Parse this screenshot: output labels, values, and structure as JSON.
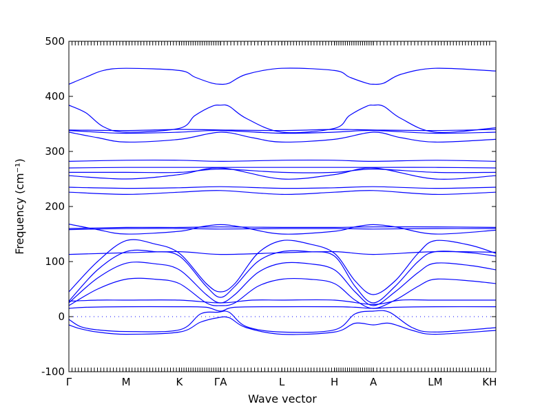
{
  "chart_data": {
    "type": "line",
    "xlabel": "Wave vector",
    "ylabel": "Frequency (cm⁻¹)",
    "ylim": [
      -100,
      500
    ],
    "yticks": [
      -100,
      0,
      100,
      200,
      300,
      400,
      500
    ],
    "xlim": [
      0,
      7.46
    ],
    "high_symmetry_points": [
      {
        "label": "Γ",
        "x": 0.0
      },
      {
        "label": "M",
        "x": 1.0
      },
      {
        "label": "K",
        "x": 1.93
      },
      {
        "label": "ΓA",
        "x": 2.65
      },
      {
        "label": "L",
        "x": 3.72
      },
      {
        "label": "H",
        "x": 4.64
      },
      {
        "label": "A",
        "x": 5.32
      },
      {
        "label": "LM",
        "x": 6.4
      },
      {
        "label": "KH",
        "x": 7.35
      }
    ],
    "zero_line": 0,
    "band_color": "#0000ff",
    "bands": [
      {
        "x": [
          0,
          0.2,
          0.5,
          1.0,
          1.93,
          2.3,
          2.6,
          2.8,
          3.1,
          3.72,
          4.64,
          5.0,
          5.32,
          5.6,
          6.0,
          6.4,
          7.46
        ],
        "y": [
          -15,
          -22,
          -28,
          -32,
          -28,
          -10,
          -2,
          -2,
          -20,
          -32,
          -28,
          -12,
          -15,
          -12,
          -25,
          -32,
          -25
        ]
      },
      {
        "x": [
          0,
          0.2,
          0.5,
          1.0,
          1.93,
          2.3,
          2.6,
          2.8,
          3.1,
          3.72,
          4.64,
          5.0,
          5.32,
          5.6,
          6.0,
          6.4,
          7.46
        ],
        "y": [
          -5,
          -18,
          -24,
          -27,
          -24,
          5,
          8,
          8,
          -18,
          -28,
          -24,
          5,
          10,
          8,
          -20,
          -28,
          -20
        ]
      },
      {
        "x": [
          0,
          0.3,
          1.0,
          1.93,
          2.4,
          2.65,
          2.9,
          3.72,
          4.64,
          5.0,
          5.32,
          5.7,
          6.4,
          7.46
        ],
        "y": [
          15,
          17,
          18,
          18,
          17,
          10,
          17,
          18,
          18,
          17,
          15,
          17,
          18,
          18
        ]
      },
      {
        "x": [
          0,
          0.5,
          1.0,
          1.93,
          2.65,
          3.2,
          3.72,
          4.64,
          5.32,
          5.8,
          6.4,
          7.46
        ],
        "y": [
          28,
          30,
          30,
          30,
          25,
          30,
          30,
          30,
          22,
          30,
          30,
          30
        ]
      },
      {
        "x": [
          0,
          0.5,
          1.0,
          1.5,
          1.93,
          2.4,
          2.65,
          2.9,
          3.3,
          3.72,
          4.2,
          4.64,
          5.0,
          5.32,
          5.7,
          6.1,
          6.4,
          7.0,
          7.46
        ],
        "y": [
          20,
          50,
          68,
          68,
          60,
          25,
          20,
          25,
          55,
          68,
          68,
          60,
          30,
          15,
          30,
          55,
          68,
          65,
          60
        ]
      },
      {
        "x": [
          0,
          0.5,
          1.0,
          1.5,
          1.93,
          2.4,
          2.65,
          2.9,
          3.3,
          3.72,
          4.2,
          4.64,
          5.0,
          5.32,
          5.7,
          6.1,
          6.4,
          7.0,
          7.46
        ],
        "y": [
          25,
          70,
          97,
          96,
          85,
          40,
          25,
          40,
          80,
          97,
          96,
          85,
          45,
          20,
          45,
          80,
          97,
          93,
          85
        ]
      },
      {
        "x": [
          0,
          0.5,
          1.0,
          1.5,
          1.93,
          2.4,
          2.65,
          2.9,
          3.3,
          3.72,
          4.2,
          4.64,
          5.0,
          5.32,
          5.7,
          6.1,
          6.4,
          7.0,
          7.46
        ],
        "y": [
          28,
          85,
          118,
          118,
          110,
          55,
          35,
          55,
          100,
          118,
          118,
          110,
          55,
          25,
          55,
          100,
          118,
          116,
          110
        ]
      },
      {
        "x": [
          0,
          0.5,
          1.0,
          1.5,
          1.93,
          2.4,
          2.65,
          2.9,
          3.3,
          3.72,
          4.2,
          4.64,
          5.0,
          5.32,
          5.7,
          6.1,
          6.4,
          7.0,
          7.46
        ],
        "y": [
          45,
          100,
          138,
          132,
          115,
          60,
          45,
          60,
          115,
          138,
          132,
          115,
          65,
          40,
          65,
          115,
          138,
          130,
          115
        ]
      },
      {
        "x": [
          0,
          1.0,
          1.93,
          2.65,
          3.72,
          4.64,
          5.32,
          6.4,
          7.46
        ],
        "y": [
          113,
          116,
          118,
          113,
          116,
          118,
          113,
          118,
          117
        ]
      },
      {
        "x": [
          0,
          1.0,
          1.93,
          2.65,
          3.72,
          4.64,
          5.32,
          6.4,
          7.46
        ],
        "y": [
          158,
          160,
          160,
          159,
          160,
          160,
          159,
          160,
          160
        ]
      },
      {
        "x": [
          0,
          1.0,
          1.93,
          2.65,
          3.72,
          4.64,
          5.32,
          6.4,
          7.46
        ],
        "y": [
          160,
          162,
          162,
          163,
          162,
          162,
          163,
          163,
          162
        ]
      },
      {
        "x": [
          0,
          0.5,
          1.0,
          1.93,
          2.3,
          2.65,
          3.0,
          3.72,
          4.64,
          5.0,
          5.32,
          5.7,
          6.4,
          7.46
        ],
        "y": [
          168,
          158,
          150,
          155,
          163,
          167,
          163,
          150,
          155,
          163,
          167,
          163,
          150,
          157
        ]
      },
      {
        "x": [
          0,
          1.0,
          1.93,
          2.65,
          3.72,
          4.64,
          5.32,
          6.4,
          7.46
        ],
        "y": [
          226,
          222,
          226,
          229,
          222,
          226,
          229,
          222,
          226
        ]
      },
      {
        "x": [
          0,
          1.0,
          1.93,
          2.65,
          3.72,
          4.64,
          5.32,
          6.4,
          7.46
        ],
        "y": [
          235,
          233,
          234,
          236,
          233,
          234,
          236,
          233,
          235
        ]
      },
      {
        "x": [
          0,
          1.0,
          1.93,
          2.65,
          3.72,
          4.64,
          5.32,
          6.4,
          7.46
        ],
        "y": [
          256,
          250,
          258,
          270,
          250,
          258,
          270,
          250,
          256
        ]
      },
      {
        "x": [
          0,
          1.0,
          1.93,
          2.65,
          3.72,
          4.64,
          5.32,
          6.4,
          7.46
        ],
        "y": [
          262,
          262,
          262,
          268,
          262,
          262,
          268,
          262,
          262
        ]
      },
      {
        "x": [
          0,
          1.0,
          1.93,
          2.65,
          3.72,
          4.64,
          5.32,
          6.4,
          7.46
        ],
        "y": [
          270,
          271,
          271,
          271,
          271,
          271,
          271,
          271,
          270
        ]
      },
      {
        "x": [
          0,
          1.0,
          1.93,
          2.65,
          3.72,
          4.64,
          5.32,
          6.4,
          7.46
        ],
        "y": [
          282,
          284,
          284,
          282,
          284,
          284,
          282,
          284,
          282
        ]
      },
      {
        "x": [
          0,
          0.5,
          1.0,
          1.93,
          2.65,
          3.2,
          3.72,
          4.64,
          5.32,
          5.8,
          6.4,
          7.46
        ],
        "y": [
          335,
          325,
          317,
          322,
          335,
          325,
          317,
          322,
          335,
          325,
          317,
          322
        ]
      },
      {
        "x": [
          0,
          0.5,
          1.0,
          1.93,
          2.65,
          3.72,
          4.64,
          5.32,
          6.4,
          7.46
        ],
        "y": [
          338,
          335,
          333,
          335,
          338,
          333,
          335,
          338,
          333,
          335
        ]
      },
      {
        "x": [
          0,
          1.0,
          1.93,
          2.65,
          3.72,
          4.64,
          5.32,
          6.4,
          7.46
        ],
        "y": [
          339,
          338,
          340,
          339,
          338,
          340,
          339,
          338,
          340
        ]
      },
      {
        "x": [
          0,
          0.3,
          0.6,
          1.0,
          1.93,
          2.2,
          2.5,
          2.65,
          2.8,
          3.1,
          3.72,
          4.64,
          4.9,
          5.2,
          5.32,
          5.5,
          5.8,
          6.4,
          7.46
        ],
        "y": [
          384,
          370,
          345,
          335,
          342,
          365,
          382,
          384,
          382,
          360,
          335,
          342,
          365,
          382,
          384,
          382,
          360,
          335,
          343
        ]
      },
      {
        "x": [
          0,
          0.3,
          0.6,
          1.0,
          1.93,
          2.2,
          2.5,
          2.65,
          2.8,
          3.1,
          3.72,
          4.64,
          4.9,
          5.2,
          5.32,
          5.5,
          5.8,
          6.4,
          7.46
        ],
        "y": [
          422,
          435,
          447,
          451,
          447,
          435,
          424,
          422,
          424,
          440,
          451,
          447,
          435,
          424,
          422,
          424,
          440,
          451,
          446
        ]
      }
    ]
  }
}
